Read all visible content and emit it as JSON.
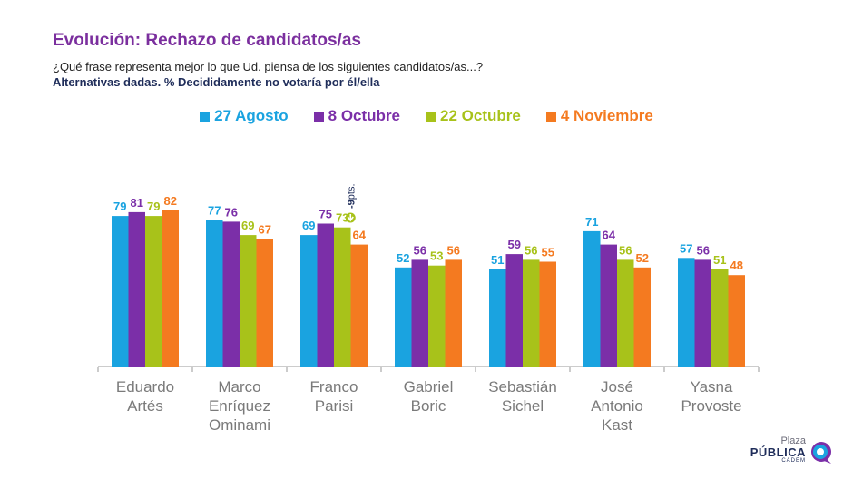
{
  "title": "Evolución: Rechazo de candidatos/as",
  "subtitle": "¿Qué frase representa mejor lo que Ud. piensa de los siguientes candidatos/as...?",
  "subtitle_bold": "Alternativas dadas. % Decididamente no votaría por él/ella",
  "logo": {
    "top": "Plaza",
    "main": "PÚBLICA",
    "sub": "CADEM"
  },
  "annotation": {
    "value": "-9",
    "unit": "pts."
  },
  "chart_data": {
    "type": "bar",
    "categories": [
      [
        "Eduardo",
        "Artés"
      ],
      [
        "Marco",
        "Enríquez",
        "Ominami"
      ],
      [
        "Franco",
        "Parisi"
      ],
      [
        "Gabriel",
        "Boric"
      ],
      [
        "Sebastián",
        "Sichel"
      ],
      [
        "José",
        "Antonio",
        "Kast"
      ],
      [
        "Yasna",
        "Provoste"
      ]
    ],
    "series": [
      {
        "name": "27 Agosto",
        "color": "#1aa3e0",
        "values": [
          79,
          77,
          69,
          52,
          51,
          71,
          57
        ]
      },
      {
        "name": "8 Octubre",
        "color": "#7b2fa8",
        "values": [
          81,
          76,
          75,
          56,
          59,
          64,
          56
        ]
      },
      {
        "name": "22 Octubre",
        "color": "#a8c21a",
        "values": [
          79,
          69,
          73,
          53,
          56,
          56,
          51
        ]
      },
      {
        "name": "4 Noviembre",
        "color": "#f47a20",
        "values": [
          82,
          67,
          64,
          56,
          55,
          52,
          48
        ]
      }
    ],
    "ylim": [
      0,
      100
    ],
    "grid": false,
    "legend_position": "top-center"
  }
}
